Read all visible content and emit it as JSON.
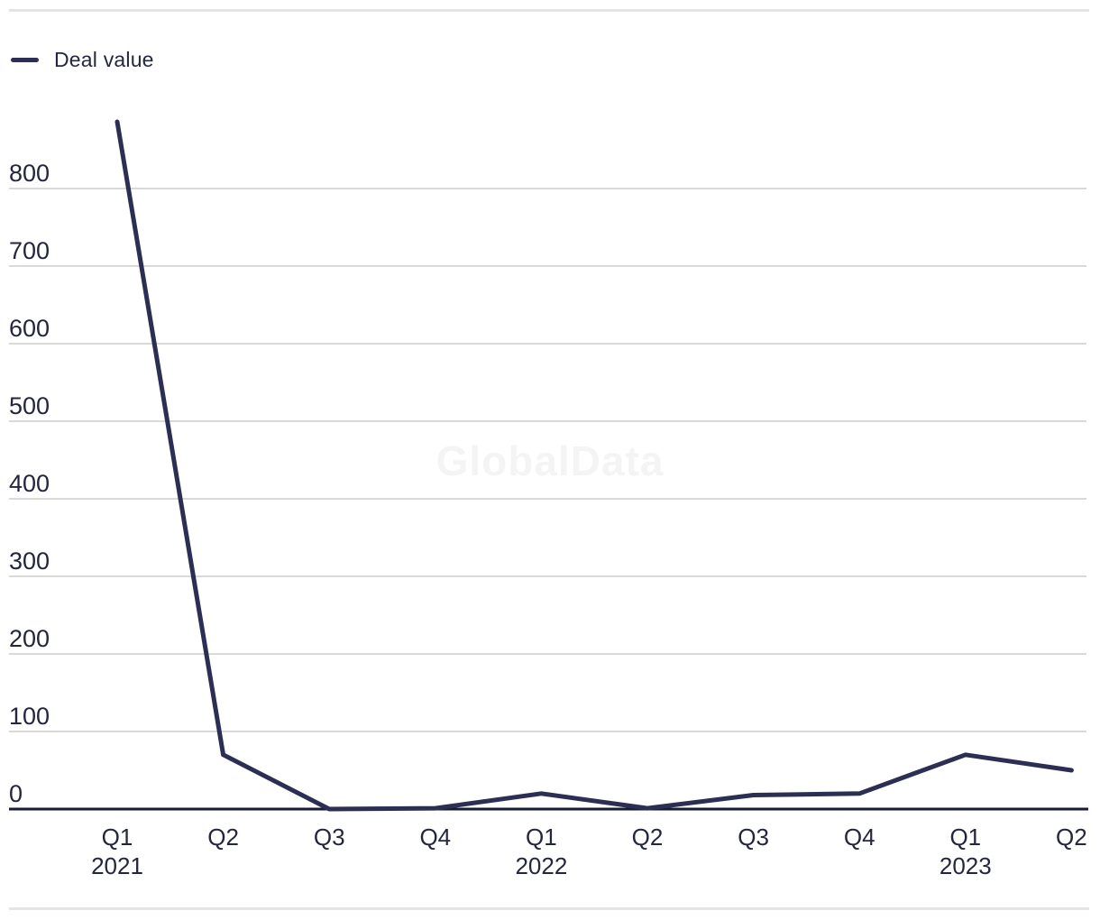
{
  "legend": {
    "items": [
      {
        "label": "Deal value"
      }
    ]
  },
  "watermark_text": "GlobalData",
  "colors": {
    "series_line": "#2c2e54",
    "axis_line": "#191a33",
    "gridline": "#d9d9d9",
    "tick_label": "#23263e",
    "watermark": "#f4f4f4",
    "rule": "#e4e4e4",
    "background": "#ffffff"
  },
  "chart_data": {
    "type": "line",
    "title": "",
    "xlabel": "",
    "ylabel": "",
    "x": [
      "Q1 2021",
      "Q2 2021",
      "Q3 2021",
      "Q4 2021",
      "Q1 2022",
      "Q2 2022",
      "Q3 2022",
      "Q4 2022",
      "Q1 2023",
      "Q2 2023"
    ],
    "x_tick_labels": [
      "Q1",
      "Q2",
      "Q3",
      "Q4",
      "Q1",
      "Q2",
      "Q3",
      "Q4",
      "Q1",
      "Q2"
    ],
    "x_year_labels": [
      "2021",
      "",
      "",
      "",
      "2022",
      "",
      "",
      "",
      "2023",
      ""
    ],
    "series": [
      {
        "name": "Deal value",
        "values": [
          886,
          70,
          0,
          1,
          20,
          1,
          18,
          20,
          70,
          50
        ],
        "color": "#2c2e54"
      }
    ],
    "y_ticks": [
      0,
      100,
      200,
      300,
      400,
      500,
      600,
      700,
      800
    ],
    "ylim": [
      0,
      905
    ],
    "grid": true,
    "legend_position": "top-left"
  }
}
